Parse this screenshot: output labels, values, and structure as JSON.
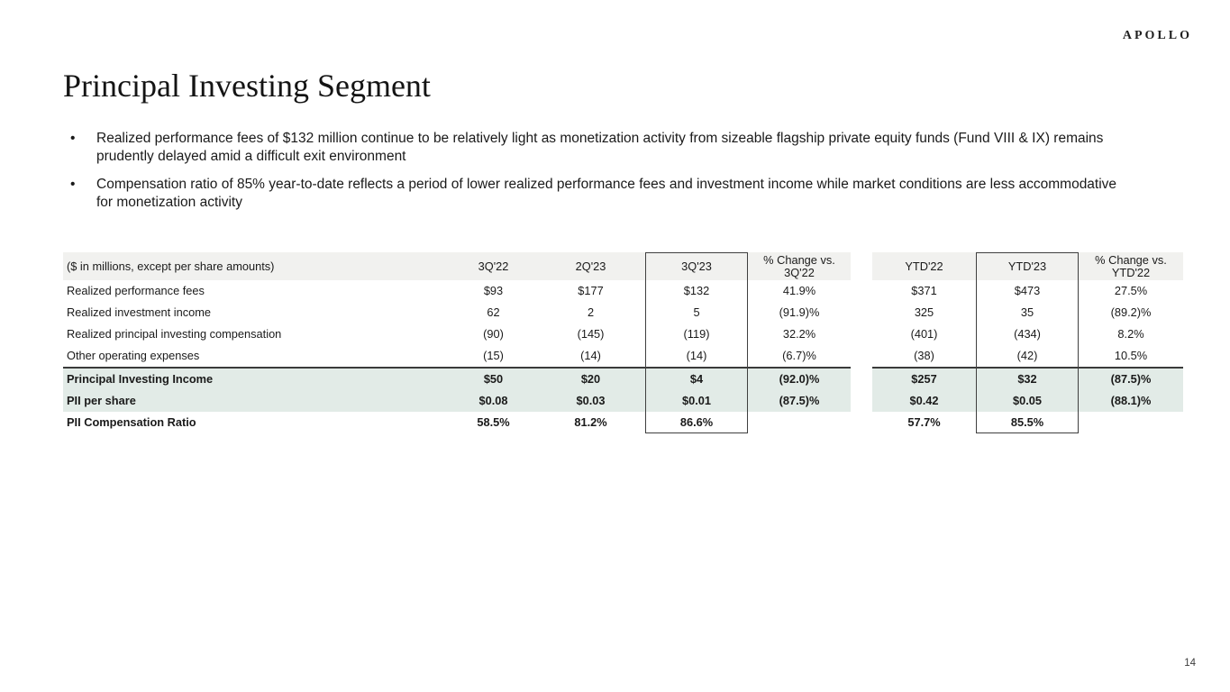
{
  "logo": "APOLLO",
  "title": "Principal Investing Segment",
  "page_number": "14",
  "bullets": [
    "Realized performance fees of $132 million continue to be relatively light as monetization activity from sizeable flagship private equity funds (Fund VIII & IX) remains prudently delayed amid a difficult exit environment",
    "Compensation ratio of 85% year-to-date reflects a period of lower realized performance fees and investment income while market conditions are less accommodative for monetization activity"
  ],
  "table": {
    "header": [
      "($ in millions, except per share amounts)",
      "3Q'22",
      "2Q'23",
      "3Q'23",
      "% Change vs.\n3Q'22",
      "YTD'22",
      "YTD'23",
      "% Change vs.\nYTD'22"
    ],
    "rows": [
      {
        "label": "Realized performance fees",
        "values": [
          "$93",
          "$177",
          "$132",
          "41.9%",
          "$371",
          "$473",
          "27.5%"
        ],
        "style": "normal"
      },
      {
        "label": "Realized investment income",
        "values": [
          "62",
          "2",
          "5",
          "(91.9)%",
          "325",
          "35",
          "(89.2)%"
        ],
        "style": "normal"
      },
      {
        "label": "Realized principal investing compensation",
        "values": [
          "(90)",
          "(145)",
          "(119)",
          "32.2%",
          "(401)",
          "(434)",
          "8.2%"
        ],
        "style": "normal"
      },
      {
        "label": "Other operating expenses",
        "values": [
          "(15)",
          "(14)",
          "(14)",
          "(6.7)%",
          "(38)",
          "(42)",
          "10.5%"
        ],
        "style": "normal"
      },
      {
        "label": "Principal Investing Income",
        "values": [
          "$50",
          "$20",
          "$4",
          "(92.0)%",
          "$257",
          "$32",
          "(87.5)%"
        ],
        "style": "highlight"
      },
      {
        "label": "PII per share",
        "values": [
          "$0.08",
          "$0.03",
          "$0.01",
          "(87.5)%",
          "$0.42",
          "$0.05",
          "(88.1)%"
        ],
        "style": "highlight"
      },
      {
        "label": "PII Compensation Ratio",
        "values": [
          "58.5%",
          "81.2%",
          "86.6%",
          "",
          "57.7%",
          "85.5%",
          ""
        ],
        "style": "bold"
      }
    ]
  },
  "colors": {
    "header_bg": "#f1f1ef",
    "highlight_bg": "#e2ebe7",
    "rule": "#3a3a3a",
    "box_border": "#3f3f3f",
    "text": "#1a1a1a"
  }
}
